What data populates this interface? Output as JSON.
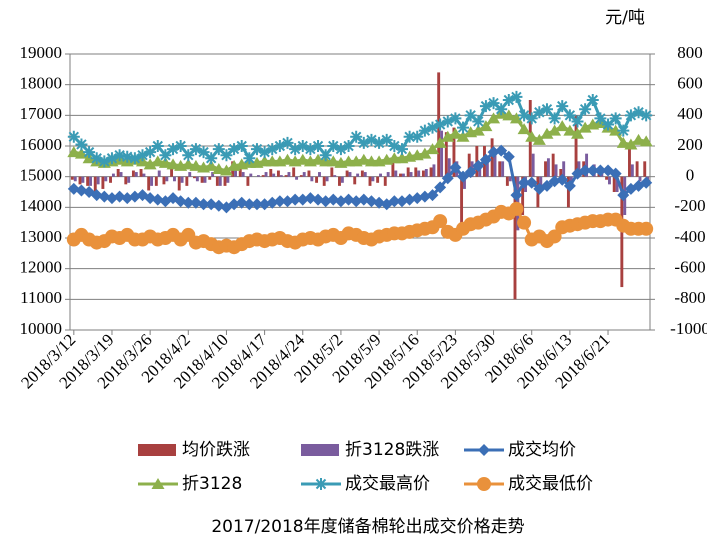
{
  "chart_data": {
    "type": "combo",
    "title": "2017/2018年度储备棉轮出成交价格走势",
    "y2_label": "元/吨",
    "legend": "bottom",
    "grid": true,
    "categories": [
      "2018/3/12",
      null,
      null,
      null,
      null,
      "2018/3/19",
      null,
      null,
      null,
      null,
      "2018/3/26",
      null,
      null,
      null,
      null,
      "2018/4/2",
      null,
      null,
      null,
      null,
      "2018/4/10",
      null,
      null,
      null,
      null,
      "2018/4/17",
      null,
      null,
      null,
      null,
      "2018/4/24",
      null,
      null,
      null,
      null,
      "2018/5/2",
      null,
      null,
      null,
      null,
      "2018/5/9",
      null,
      null,
      null,
      null,
      "2018/5/16",
      null,
      null,
      null,
      null,
      "2018/5/23",
      null,
      null,
      null,
      null,
      "2018/5/30",
      null,
      null,
      null,
      null,
      "2018/6/6",
      null,
      null,
      null,
      null,
      "2018/6/13",
      null,
      null,
      null,
      null,
      "2018/6/21",
      null,
      null,
      null,
      null,
      null
    ],
    "ylim": [
      10000,
      19000
    ],
    "yticks": [
      10000,
      11000,
      12000,
      13000,
      14000,
      15000,
      16000,
      17000,
      18000,
      19000
    ],
    "y2lim": [
      -1000,
      800
    ],
    "y2ticks": [
      -1000,
      -800,
      -600,
      -400,
      -200,
      0,
      200,
      400,
      600,
      800
    ],
    "series": [
      {
        "name": "均价跌涨",
        "type": "bar",
        "axis": "y2",
        "color": "#a8403f",
        "values": [
          -20,
          -50,
          -60,
          -100,
          -80,
          -40,
          50,
          -50,
          40,
          50,
          -90,
          -60,
          -50,
          90,
          -90,
          -60,
          -10,
          -40,
          -20,
          -60,
          -60,
          100,
          50,
          -60,
          0,
          10,
          50,
          40,
          10,
          60,
          10,
          40,
          -40,
          -60,
          60,
          -60,
          40,
          -50,
          40,
          -60,
          -40,
          -60,
          100,
          20,
          60,
          60,
          40,
          60,
          680,
          290,
          320,
          -300,
          150,
          200,
          200,
          250,
          100,
          -60,
          -800,
          -250,
          500,
          -200,
          100,
          150,
          50,
          -200,
          400,
          100,
          0,
          20,
          -20,
          -100,
          -720,
          200,
          100,
          100
        ]
      },
      {
        "name": "折3128跌涨",
        "type": "bar",
        "axis": "y2",
        "color": "#7a5c9e",
        "values": [
          -30,
          -40,
          -60,
          -50,
          -30,
          20,
          30,
          -40,
          30,
          20,
          -60,
          40,
          -30,
          -30,
          -40,
          30,
          -30,
          -40,
          30,
          -60,
          -40,
          80,
          30,
          20,
          10,
          30,
          20,
          10,
          30,
          -20,
          30,
          -30,
          30,
          -30,
          10,
          -40,
          30,
          20,
          30,
          -30,
          20,
          30,
          40,
          20,
          30,
          40,
          50,
          80,
          300,
          120,
          100,
          -80,
          100,
          60,
          130,
          150,
          100,
          -30,
          -350,
          -100,
          150,
          -100,
          120,
          80,
          100,
          -80,
          100,
          150,
          80,
          40,
          -50,
          -100,
          -250,
          80,
          -30,
          -40
        ]
      },
      {
        "name": "成交均价",
        "type": "line",
        "marker": "diamond",
        "color": "#3b6fb6",
        "values": [
          14600,
          14550,
          14500,
          14400,
          14350,
          14300,
          14350,
          14300,
          14350,
          14400,
          14300,
          14250,
          14200,
          14300,
          14200,
          14150,
          14150,
          14100,
          14100,
          14050,
          14000,
          14100,
          14150,
          14100,
          14100,
          14100,
          14150,
          14200,
          14200,
          14250,
          14250,
          14300,
          14250,
          14200,
          14250,
          14200,
          14250,
          14200,
          14250,
          14200,
          14150,
          14100,
          14200,
          14200,
          14250,
          14300,
          14350,
          14400,
          14650,
          14950,
          15300,
          15000,
          15150,
          15350,
          15550,
          15800,
          15850,
          15650,
          14400,
          14800,
          14800,
          14600,
          14700,
          14850,
          14900,
          14700,
          15100,
          15200,
          15200,
          15200,
          15200,
          15100,
          14400,
          14600,
          14700,
          14800
        ]
      },
      {
        "name": "折3128",
        "type": "line",
        "marker": "triangle",
        "color": "#8db04b",
        "values": [
          15800,
          15750,
          15600,
          15500,
          15450,
          15500,
          15550,
          15500,
          15550,
          15500,
          15400,
          15500,
          15450,
          15400,
          15350,
          15400,
          15350,
          15300,
          15350,
          15250,
          15200,
          15350,
          15400,
          15450,
          15450,
          15500,
          15500,
          15500,
          15550,
          15500,
          15550,
          15500,
          15550,
          15500,
          15500,
          15450,
          15500,
          15500,
          15550,
          15500,
          15500,
          15550,
          15600,
          15600,
          15650,
          15700,
          15750,
          15900,
          16100,
          16300,
          16400,
          16300,
          16450,
          16500,
          16650,
          16900,
          17050,
          17000,
          16900,
          16550,
          16300,
          16200,
          16400,
          16500,
          16650,
          16500,
          16400,
          16600,
          16700,
          16750,
          16600,
          16500,
          16100,
          16050,
          16200,
          16150
        ]
      },
      {
        "name": "成交最高价",
        "type": "line",
        "marker": "asterisk",
        "color": "#3a9bb5",
        "values": [
          16300,
          16050,
          15800,
          15600,
          15500,
          15600,
          15700,
          15650,
          15600,
          15700,
          15800,
          16000,
          15700,
          15900,
          16000,
          15700,
          15900,
          15800,
          15600,
          15900,
          15700,
          15900,
          16000,
          15600,
          15900,
          15800,
          15900,
          16000,
          16100,
          15900,
          16000,
          15900,
          16000,
          15700,
          16000,
          15900,
          16000,
          16300,
          16100,
          16200,
          16100,
          16200,
          16000,
          15900,
          16300,
          16300,
          16500,
          16600,
          16700,
          16800,
          16900,
          16600,
          17000,
          16800,
          17300,
          17400,
          17200,
          17500,
          17600,
          17000,
          16900,
          17100,
          17200,
          16900,
          17300,
          17000,
          16800,
          17200,
          17500,
          16900,
          16700,
          16900,
          16500,
          17000,
          17100,
          17000
        ]
      },
      {
        "name": "成交最低价",
        "type": "line",
        "marker": "circle",
        "color": "#e9913b",
        "values": [
          12950,
          13100,
          12950,
          12850,
          12900,
          13050,
          13000,
          13100,
          12950,
          12950,
          13050,
          12950,
          13000,
          13100,
          12950,
          13100,
          12850,
          12900,
          12800,
          12700,
          12750,
          12700,
          12800,
          12900,
          12950,
          12900,
          12950,
          13000,
          12900,
          12850,
          12950,
          13000,
          12950,
          13050,
          13100,
          13000,
          13150,
          13100,
          13000,
          12950,
          13050,
          13100,
          13150,
          13150,
          13200,
          13250,
          13300,
          13350,
          13550,
          13200,
          13100,
          13300,
          13450,
          13500,
          13600,
          13700,
          13850,
          13800,
          13950,
          13500,
          12950,
          13050,
          12900,
          13050,
          13350,
          13400,
          13450,
          13500,
          13550,
          13550,
          13600,
          13600,
          13400,
          13300,
          13300,
          13300
        ]
      }
    ]
  }
}
